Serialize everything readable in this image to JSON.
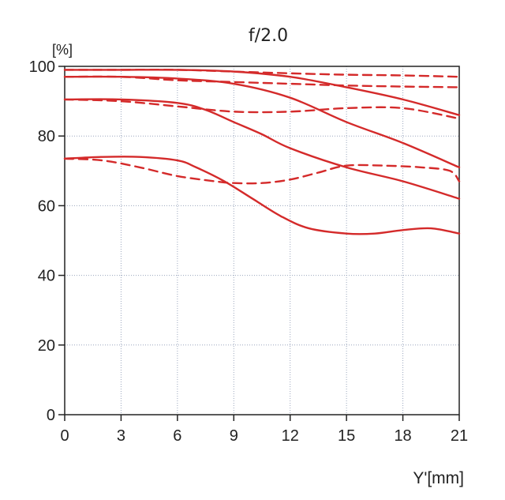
{
  "chart_data": {
    "type": "line",
    "title": "f/2.0",
    "ylabel": "[%]",
    "xlabel": "Y'[mm]",
    "xlim": [
      0,
      21
    ],
    "ylim": [
      0,
      100
    ],
    "xticks": [
      0,
      3,
      6,
      9,
      12,
      15,
      18,
      21
    ],
    "yticks": [
      0,
      20,
      40,
      60,
      80,
      100
    ],
    "grid": true,
    "line_color": "#d42a2a",
    "series": [
      {
        "style": "solid",
        "x": [
          0,
          3,
          6,
          9,
          12,
          15,
          18,
          21
        ],
        "y": [
          99,
          99,
          99,
          98.5,
          97,
          94,
          90.5,
          86
        ]
      },
      {
        "style": "dashed",
        "x": [
          0,
          3,
          6,
          9,
          12,
          15,
          18,
          21
        ],
        "y": [
          99,
          99,
          99,
          98.5,
          98,
          97.6,
          97.4,
          97
        ]
      },
      {
        "style": "solid",
        "x": [
          0,
          3,
          6,
          9,
          12,
          15,
          18,
          21
        ],
        "y": [
          97,
          97,
          96.5,
          95,
          91,
          84,
          78,
          71
        ]
      },
      {
        "style": "dashed",
        "x": [
          0,
          3,
          6,
          9,
          12,
          15,
          18,
          21
        ],
        "y": [
          97,
          97,
          96,
          95.5,
          95,
          94.5,
          94.2,
          94
        ]
      },
      {
        "style": "solid",
        "x": [
          0,
          3,
          6,
          7.5,
          9,
          10.5,
          12,
          15,
          18,
          21
        ],
        "y": [
          90.5,
          90.5,
          89.5,
          87.5,
          84,
          80.5,
          76.5,
          71,
          67,
          62
        ]
      },
      {
        "style": "dashed",
        "x": [
          0,
          3,
          6,
          9,
          12,
          15,
          18,
          21
        ],
        "y": [
          90.5,
          90,
          88.5,
          87,
          87,
          88,
          88,
          85
        ]
      },
      {
        "style": "solid",
        "x": [
          0,
          2,
          4,
          6,
          7,
          8.5,
          10,
          11.5,
          13,
          15,
          16.5,
          18,
          19.5,
          21
        ],
        "y": [
          73.5,
          74,
          74,
          73,
          71,
          67,
          62,
          57,
          53.5,
          52,
          52,
          53,
          53.5,
          52
        ]
      },
      {
        "style": "dashed",
        "x": [
          0,
          2,
          4,
          6,
          8,
          9,
          10.5,
          12,
          13.5,
          15,
          17,
          19,
          20.5,
          21
        ],
        "y": [
          73.5,
          73,
          71,
          68.5,
          67,
          66.5,
          66.5,
          67.5,
          69.5,
          71.5,
          71.5,
          71,
          70,
          67
        ]
      }
    ]
  }
}
